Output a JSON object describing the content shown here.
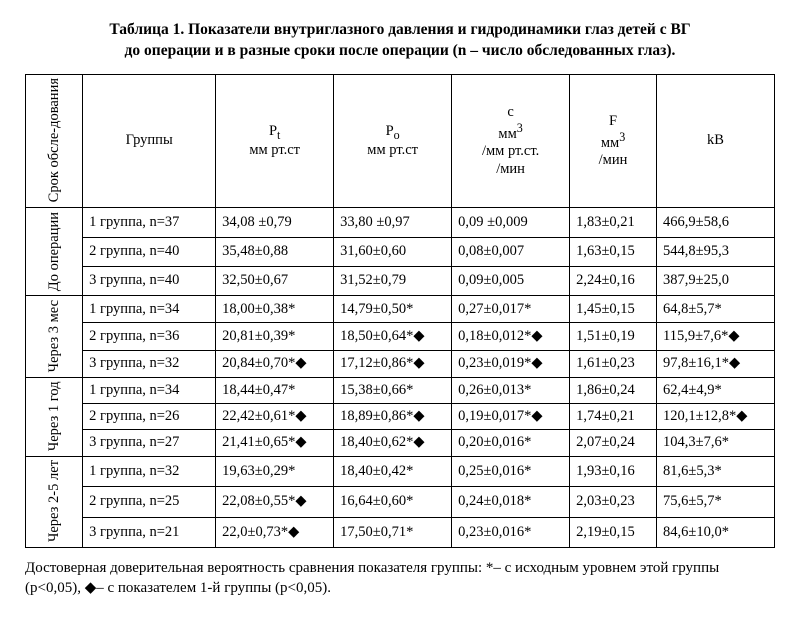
{
  "title_line1": "Таблица 1. Показатели внутриглазного давления и гидродинамики глаз детей с ВГ",
  "title_line2": "до операции и в разные сроки после операции (n – число обследованных глаз).",
  "headers": {
    "period": "Срок обсле-дования",
    "group": "Группы",
    "pt_l1": "P",
    "pt_sub": "t",
    "pt_l2": "мм рт.ст",
    "po_l1": "P",
    "po_sub": "o",
    "po_l2": "мм рт.ст",
    "c_l1": "c",
    "c_l2": "мм",
    "c_sup": "3",
    "c_l3": "/мм рт.ст.",
    "c_l4": "/мин",
    "f_l1": "F",
    "f_l2": "мм",
    "f_sup": "3",
    "f_l3": "/мин",
    "kb": "kB"
  },
  "periods": {
    "p0": "До операции",
    "p1": "Через 3 мес",
    "p2": "Через 1 год",
    "p3": "Через 2-5 лет"
  },
  "rows": [
    {
      "g": "1 группа, n=37",
      "pt": "34,08 ±0,79",
      "po": "33,80 ±0,97",
      "c": "0,09 ±0,009",
      "f": "1,83±0,21",
      "kb": "466,9±58,6"
    },
    {
      "g": "2 группа, n=40",
      "pt": "35,48±0,88",
      "po": "31,60±0,60",
      "c": "0,08±0,007",
      "f": "1,63±0,15",
      "kb": "544,8±95,3"
    },
    {
      "g": "3 группа, n=40",
      "pt": "32,50±0,67",
      "po": "31,52±0,79",
      "c": "0,09±0,005",
      "f": "2,24±0,16",
      "kb": "387,9±25,0"
    },
    {
      "g": "1 группа, n=34",
      "pt": "18,00±0,38*",
      "po": "14,79±0,50*",
      "c": "0,27±0,017*",
      "f": "1,45±0,15",
      "kb": "64,8±5,7*"
    },
    {
      "g": "2 группа, n=36",
      "pt": "20,81±0,39*",
      "po": "18,50±0,64*◆",
      "c": "0,18±0,012*◆",
      "f": "1,51±0,19",
      "kb": "115,9±7,6*◆"
    },
    {
      "g": "3 группа, n=32",
      "pt": "20,84±0,70*◆",
      "po": "17,12±0,86*◆",
      "c": "0,23±0,019*◆",
      "f": "1,61±0,23",
      "kb": "97,8±16,1*◆"
    },
    {
      "g": "1 группа, n=34",
      "pt": "18,44±0,47*",
      "po": "15,38±0,66*",
      "c": "0,26±0,013*",
      "f": "1,86±0,24",
      "kb": "62,4±4,9*"
    },
    {
      "g": "2 группа, n=26",
      "pt": "22,42±0,61*◆",
      "po": "18,89±0,86*◆",
      "c": "0,19±0,017*◆",
      "f": "1,74±0,21",
      "kb": "120,1±12,8*◆"
    },
    {
      "g": "3 группа, n=27",
      "pt": "21,41±0,65*◆",
      "po": "18,40±0,62*◆",
      "c": "0,20±0,016*",
      "f": "2,07±0,24",
      "kb": "104,3±7,6*"
    },
    {
      "g": "1 группа, n=32",
      "pt": "19,63±0,29*",
      "po": "18,40±0,42*",
      "c": "0,25±0,016*",
      "f": "1,93±0,16",
      "kb": "81,6±5,3*"
    },
    {
      "g": "2 группа, n=25",
      "pt": "22,08±0,55*◆",
      "po": "16,64±0,60*",
      "c": "0,24±0,018*",
      "f": "2,03±0,23",
      "kb": "75,6±5,7*"
    },
    {
      "g": "3 группа, n=21",
      "pt": "22,0±0,73*◆",
      "po": "17,50±0,71*",
      "c": "0,23±0,016*",
      "f": "2,19±0,15",
      "kb": "84,6±10,0*"
    }
  ],
  "footnote": "Достоверная  доверительная вероятность сравнения показателя группы: *–  с исходным уровнем  этой группы (p<0,05), ◆– с показателем 1-й группы (p<0,05)."
}
